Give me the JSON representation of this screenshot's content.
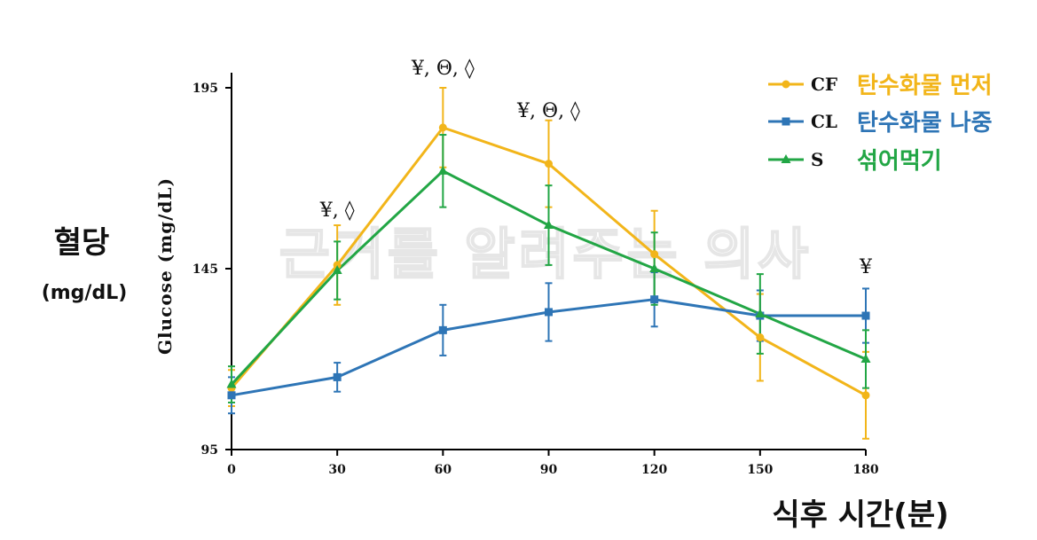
{
  "chart_data": {
    "type": "line",
    "x": [
      0,
      30,
      60,
      90,
      120,
      150,
      180
    ],
    "xticks": [
      "0",
      "30",
      "60",
      "90",
      "120",
      "150",
      "180"
    ],
    "yticks": [
      "95",
      "145",
      "195"
    ],
    "ylim": [
      95,
      200
    ],
    "xlim": [
      0,
      180
    ],
    "ylabel": "Glucose (mg/dL)",
    "ylabel_ko": "혈당",
    "ylabel_ko_unit": "(mg/dL)",
    "xlabel_ko": "식후 시간(분)",
    "watermark": "근거를 알려주는 의사",
    "legend_position": "top-right",
    "grid": false,
    "series": [
      {
        "name": "CF",
        "label_ko": "탄수화물 먼저",
        "color": "#f2b51a",
        "marker": "circle",
        "values": [
          112,
          146,
          184,
          174,
          149,
          126,
          110
        ],
        "errors": [
          5,
          11,
          11,
          12,
          12,
          12,
          12
        ]
      },
      {
        "name": "CL",
        "label_ko": "탄수화물 나중",
        "color": "#2e75b6",
        "marker": "square",
        "values": [
          110,
          115,
          128,
          133,
          136.5,
          132,
          132
        ],
        "errors": [
          5,
          4,
          7,
          8,
          7.5,
          7,
          7.5
        ]
      },
      {
        "name": "S",
        "label_ko": "섞어먹기",
        "color": "#22a645",
        "marker": "triangle",
        "values": [
          113,
          144.5,
          172,
          157,
          145,
          132.5,
          120
        ],
        "errors": [
          5,
          8,
          10,
          11,
          10,
          11,
          8
        ]
      }
    ],
    "annotations": [
      {
        "x": 30,
        "text": "¥, ◊"
      },
      {
        "x": 60,
        "text": "¥, Θ, ◊"
      },
      {
        "x": 90,
        "text": "¥, Θ, ◊"
      },
      {
        "x": 180,
        "text": "¥"
      }
    ]
  }
}
